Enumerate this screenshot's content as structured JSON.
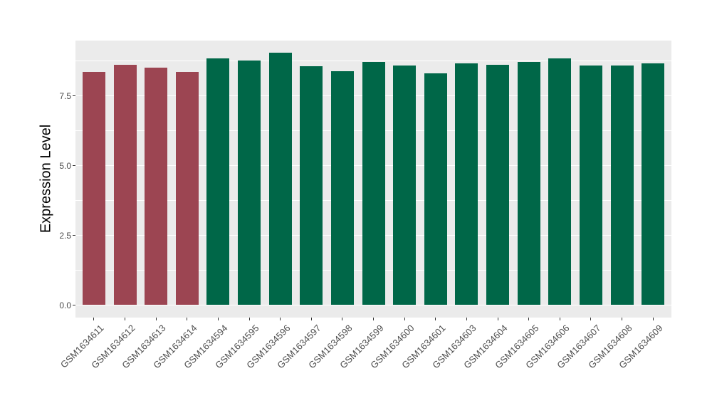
{
  "chart_data": {
    "type": "bar",
    "title": "",
    "xlabel": "",
    "ylabel": "Expression Level",
    "categories": [
      "GSM1634611",
      "GSM1634612",
      "GSM1634613",
      "GSM1634614",
      "GSM1634594",
      "GSM1634595",
      "GSM1634596",
      "GSM1634597",
      "GSM1634598",
      "GSM1634599",
      "GSM1634600",
      "GSM1634601",
      "GSM1634603",
      "GSM1634604",
      "GSM1634605",
      "GSM1634606",
      "GSM1634607",
      "GSM1634608",
      "GSM1634609"
    ],
    "values": [
      8.35,
      8.61,
      8.52,
      8.35,
      8.84,
      8.76,
      9.04,
      8.57,
      8.39,
      8.71,
      8.58,
      8.31,
      8.66,
      8.62,
      8.72,
      8.85,
      8.58,
      8.58,
      8.67
    ],
    "bar_colors": [
      "#9C4552",
      "#9C4552",
      "#9C4552",
      "#9C4552",
      "#006748",
      "#006748",
      "#006748",
      "#006748",
      "#006748",
      "#006748",
      "#006748",
      "#006748",
      "#006748",
      "#006748",
      "#006748",
      "#006748",
      "#006748",
      "#006748",
      "#006748"
    ],
    "group_colors": {
      "highlight": "#9C4552",
      "normal": "#006748"
    },
    "yticks": {
      "values": [
        0.0,
        2.5,
        5.0,
        7.5
      ],
      "labels": [
        "0.0",
        "2.5",
        "5.0",
        "7.5"
      ]
    },
    "minor_ticks": [
      1.25,
      3.75,
      6.25,
      8.75
    ],
    "ylim": [
      -0.46,
      9.49
    ],
    "grid": "on",
    "legend": "none",
    "panel_background": "#EBEBEB",
    "gridline_color": "#FFFFFF",
    "tick_mark_color": "#333333",
    "axis_text_color": "#4D4D4D",
    "axis_title_color": "#000000"
  }
}
